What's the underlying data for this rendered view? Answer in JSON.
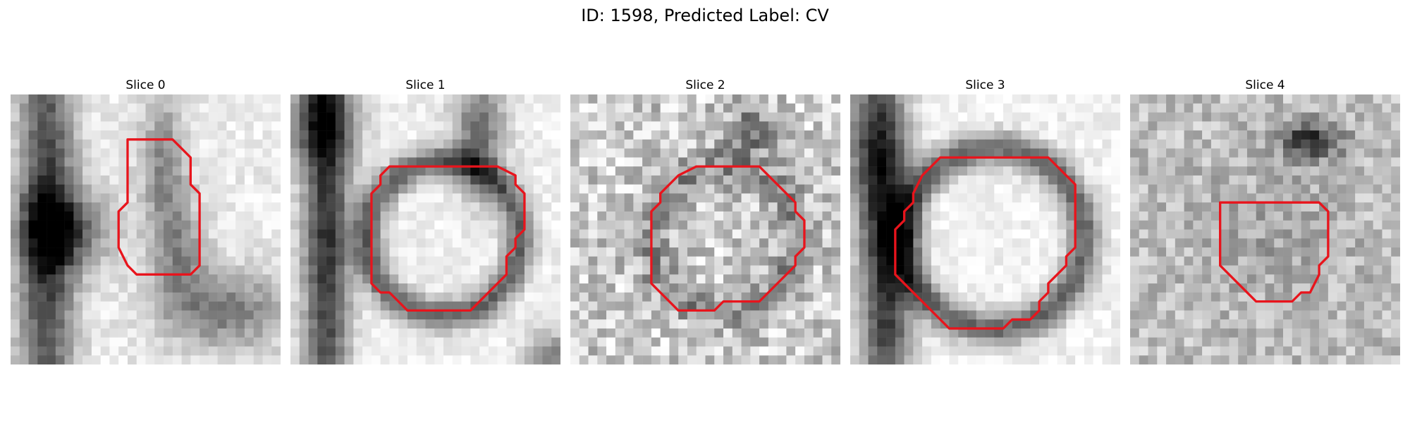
{
  "title": "ID: 1598, Predicted Label: CV",
  "panels": [
    {
      "label": "Slice 0",
      "contour": [
        [
          13,
          5
        ],
        [
          13,
          12
        ],
        [
          12,
          13
        ],
        [
          12,
          17
        ],
        [
          13,
          19
        ],
        [
          14,
          20
        ],
        [
          20,
          20
        ],
        [
          21,
          19
        ],
        [
          21,
          11
        ],
        [
          20,
          10
        ],
        [
          20,
          7
        ],
        [
          18,
          5
        ]
      ]
    },
    {
      "label": "Slice 1",
      "contour": [
        [
          11,
          8
        ],
        [
          10,
          9
        ],
        [
          10,
          10
        ],
        [
          9,
          11
        ],
        [
          9,
          21
        ],
        [
          10,
          22
        ],
        [
          11,
          22
        ],
        [
          13,
          24
        ],
        [
          20,
          24
        ],
        [
          24,
          20
        ],
        [
          24,
          18
        ],
        [
          25,
          17
        ],
        [
          25,
          16
        ],
        [
          26,
          15
        ],
        [
          26,
          11
        ],
        [
          25,
          10
        ],
        [
          25,
          9
        ],
        [
          23,
          8
        ],
        [
          23,
          8
        ]
      ]
    },
    {
      "label": "Slice 2",
      "contour": [
        [
          12,
          9
        ],
        [
          10,
          11
        ],
        [
          10,
          12
        ],
        [
          9,
          13
        ],
        [
          9,
          21
        ],
        [
          10,
          22
        ],
        [
          12,
          24
        ],
        [
          16,
          24
        ],
        [
          17,
          23
        ],
        [
          21,
          23
        ],
        [
          25,
          19
        ],
        [
          25,
          18
        ],
        [
          26,
          17
        ],
        [
          26,
          14
        ],
        [
          25,
          13
        ],
        [
          25,
          12
        ],
        [
          24,
          11
        ],
        [
          22,
          9
        ],
        [
          21,
          8
        ],
        [
          14,
          8
        ]
      ]
    },
    {
      "label": "Slice 3",
      "contour": [
        [
          10,
          7
        ],
        [
          8,
          9
        ],
        [
          7,
          11
        ],
        [
          7,
          12
        ],
        [
          6,
          13
        ],
        [
          6,
          14
        ],
        [
          5,
          15
        ],
        [
          5,
          20
        ],
        [
          11,
          26
        ],
        [
          17,
          26
        ],
        [
          18,
          25
        ],
        [
          20,
          25
        ],
        [
          21,
          24
        ],
        [
          21,
          23
        ],
        [
          22,
          22
        ],
        [
          22,
          21
        ],
        [
          23,
          20
        ],
        [
          24,
          19
        ],
        [
          24,
          18
        ],
        [
          25,
          17
        ],
        [
          25,
          10
        ],
        [
          24,
          9
        ],
        [
          24,
          9
        ],
        [
          22,
          7
        ]
      ]
    },
    {
      "label": "Slice 4",
      "contour": [
        [
          10,
          12
        ],
        [
          10,
          12
        ],
        [
          10,
          19
        ],
        [
          14,
          23
        ],
        [
          18,
          23
        ],
        [
          19,
          22
        ],
        [
          20,
          22
        ],
        [
          21,
          20
        ],
        [
          21,
          19
        ],
        [
          22,
          18
        ],
        [
          22,
          13
        ],
        [
          21,
          12
        ],
        [
          20,
          12
        ]
      ]
    }
  ]
}
